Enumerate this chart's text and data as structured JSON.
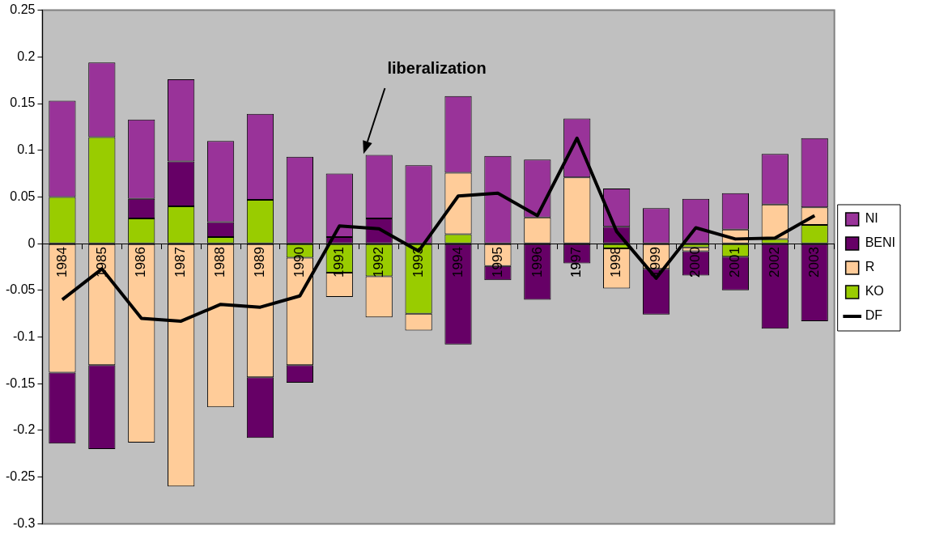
{
  "chart_data": {
    "type": "bar",
    "stacked": true,
    "categories": [
      "1984",
      "1985",
      "1986",
      "1987",
      "1988",
      "1989",
      "1990",
      "1991",
      "1992",
      "1993",
      "1994",
      "1995",
      "1996",
      "1997",
      "1998",
      "1999",
      "2000",
      "2001",
      "2002",
      "2003"
    ],
    "series": [
      {
        "name": "KO",
        "color": "#99cc00",
        "values": [
          0.05,
          0.114,
          0.027,
          0.04,
          0.007,
          0.047,
          -0.015,
          -0.031,
          -0.035,
          -0.075,
          0.01,
          null,
          null,
          null,
          -0.005,
          null,
          -0.004,
          -0.014,
          0.005,
          0.02
        ]
      },
      {
        "name": "R",
        "color": "#ffcc99",
        "values": [
          -0.138,
          -0.13,
          -0.213,
          -0.26,
          -0.175,
          -0.143,
          -0.115,
          -0.026,
          -0.044,
          -0.018,
          0.066,
          -0.024,
          0.028,
          0.071,
          -0.043,
          -0.027,
          -0.004,
          0.015,
          0.037,
          0.019
        ]
      },
      {
        "name": "BENI",
        "color": "#660066",
        "values": [
          -0.076,
          -0.09,
          0.021,
          0.048,
          0.016,
          -0.065,
          -0.019,
          0.007,
          0.027,
          null,
          -0.108,
          -0.015,
          -0.06,
          -0.021,
          0.018,
          -0.049,
          -0.026,
          -0.036,
          -0.091,
          -0.083
        ]
      },
      {
        "name": "NI",
        "color": "#993399",
        "values": [
          0.103,
          0.08,
          0.085,
          0.088,
          0.087,
          0.092,
          0.093,
          0.068,
          0.068,
          0.084,
          0.082,
          0.094,
          0.062,
          0.063,
          0.041,
          0.038,
          0.048,
          0.039,
          0.054,
          0.074
        ]
      },
      {
        "name": "DF",
        "type": "line",
        "color": "#000000",
        "values": [
          -0.06,
          -0.027,
          -0.08,
          -0.083,
          -0.065,
          -0.068,
          -0.056,
          0.019,
          0.016,
          -0.008,
          0.051,
          0.054,
          0.03,
          0.113,
          0.013,
          -0.037,
          0.017,
          0.005,
          0.006,
          0.03
        ]
      }
    ],
    "ylim": [
      -0.3,
      0.25
    ],
    "yticks": [
      -0.3,
      -0.25,
      -0.2,
      -0.15,
      -0.1,
      -0.05,
      0,
      0.05,
      0.1,
      0.15,
      0.2,
      0.25
    ],
    "grid": false,
    "legend": "right",
    "marker": "none",
    "annotations": [
      "liberalization"
    ]
  }
}
